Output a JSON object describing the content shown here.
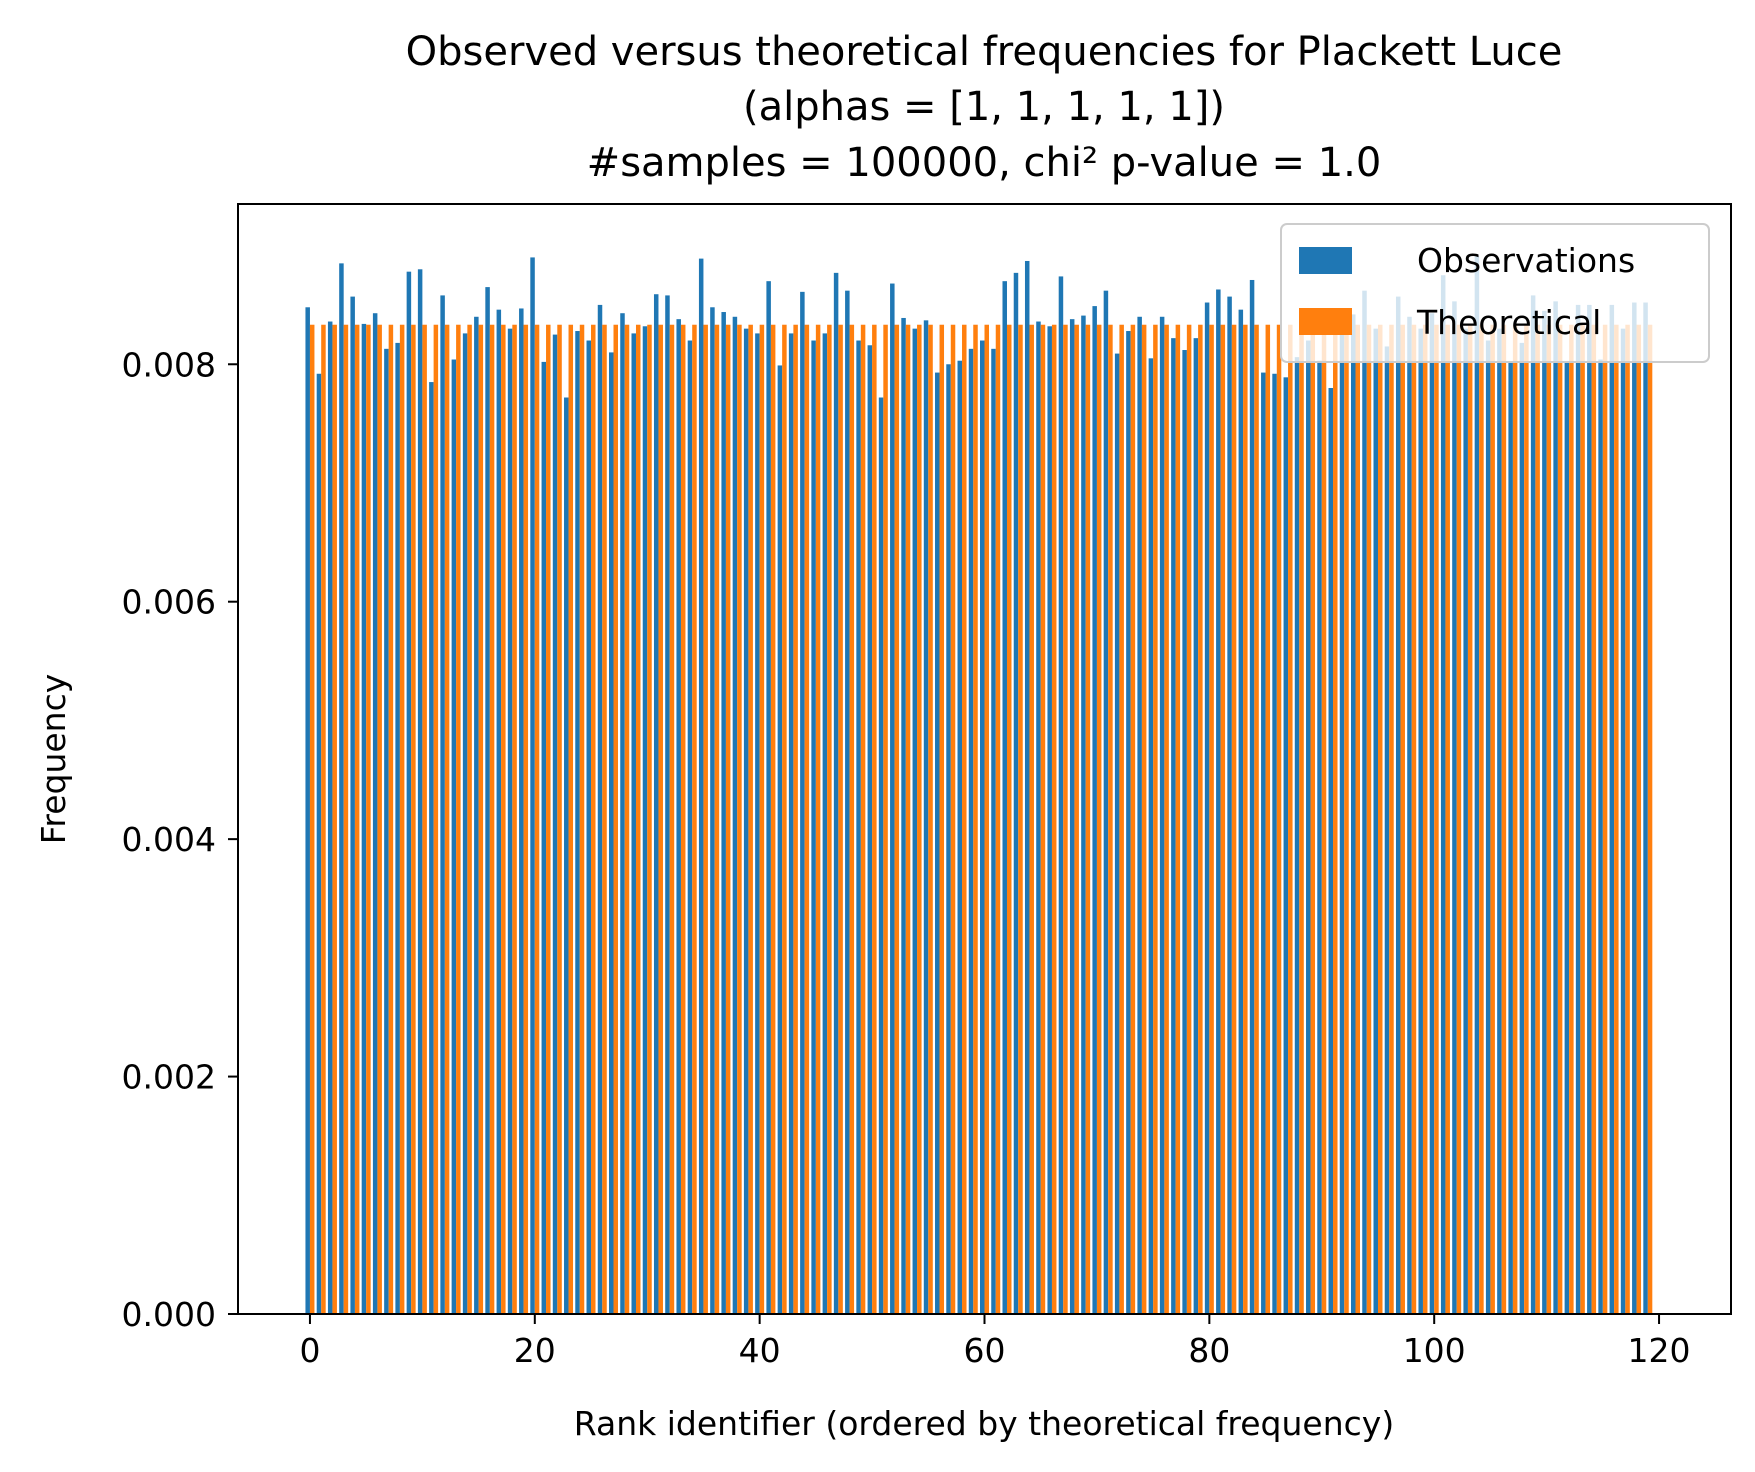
{
  "chart_data": {
    "type": "bar",
    "title": [
      "Observed versus theoretical frequencies for Plackett Luce",
      "(alphas = [1, 1, 1, 1, 1])",
      "#samples = 100000, chi² p-value = 1.0"
    ],
    "xlabel": "Rank identifier (ordered by theoretical frequency)",
    "ylabel": "Frequency",
    "xlim": [
      -6.4,
      126.4
    ],
    "ylim": [
      0,
      0.00935
    ],
    "xticks": [
      0,
      20,
      40,
      60,
      80,
      100,
      120
    ],
    "xtick_labels": [
      "0",
      "20",
      "40",
      "60",
      "80",
      "100",
      "120"
    ],
    "yticks": [
      0.0,
      0.002,
      0.004,
      0.006,
      0.008
    ],
    "ytick_labels": [
      "0.000",
      "0.002",
      "0.004",
      "0.006",
      "0.008"
    ],
    "x": [
      0,
      1,
      2,
      3,
      4,
      5,
      6,
      7,
      8,
      9,
      10,
      11,
      12,
      13,
      14,
      15,
      16,
      17,
      18,
      19,
      20,
      21,
      22,
      23,
      24,
      25,
      26,
      27,
      28,
      29,
      30,
      31,
      32,
      33,
      34,
      35,
      36,
      37,
      38,
      39,
      40,
      41,
      42,
      43,
      44,
      45,
      46,
      47,
      48,
      49,
      50,
      51,
      52,
      53,
      54,
      55,
      56,
      57,
      58,
      59,
      60,
      61,
      62,
      63,
      64,
      65,
      66,
      67,
      68,
      69,
      70,
      71,
      72,
      73,
      74,
      75,
      76,
      77,
      78,
      79,
      80,
      81,
      82,
      83,
      84,
      85,
      86,
      87,
      88,
      89,
      90,
      91,
      92,
      93,
      94,
      95,
      96,
      97,
      98,
      99,
      100,
      101,
      102,
      103,
      104,
      105,
      106,
      107,
      108,
      109,
      110,
      111,
      112,
      113,
      114,
      115,
      116,
      117,
      118,
      119
    ],
    "grid": false,
    "legend_position": "top-right",
    "series": [
      {
        "name": "Observations",
        "color": "#1f77b4",
        "values": [
          0.00848,
          0.00792,
          0.00836,
          0.00885,
          0.00857,
          0.00834,
          0.00843,
          0.00813,
          0.00818,
          0.00878,
          0.0088,
          0.00785,
          0.00858,
          0.00804,
          0.00826,
          0.0084,
          0.00865,
          0.00846,
          0.0083,
          0.00847,
          0.0089,
          0.00802,
          0.00825,
          0.00772,
          0.00828,
          0.0082,
          0.0085,
          0.0081,
          0.00843,
          0.00826,
          0.00832,
          0.00859,
          0.00858,
          0.00838,
          0.0082,
          0.00889,
          0.00848,
          0.00844,
          0.0084,
          0.0083,
          0.00826,
          0.0087,
          0.00799,
          0.00826,
          0.00861,
          0.0082,
          0.00826,
          0.00877,
          0.00862,
          0.0082,
          0.00816,
          0.00772,
          0.00868,
          0.00839,
          0.0083,
          0.00837,
          0.00793,
          0.008,
          0.00803,
          0.00813,
          0.0082,
          0.00813,
          0.0087,
          0.00877,
          0.00887,
          0.00836,
          0.00832,
          0.00874,
          0.00838,
          0.00841,
          0.00849,
          0.00862,
          0.00809,
          0.00828,
          0.0084,
          0.00805,
          0.0084,
          0.00822,
          0.00812,
          0.00822,
          0.00852,
          0.00863,
          0.00857,
          0.00846,
          0.00871,
          0.00793,
          0.00792,
          0.00789,
          0.00806,
          0.0082,
          0.00803,
          0.0078,
          0.00826,
          0.00842,
          0.00862,
          0.0083,
          0.00815,
          0.00857,
          0.0084,
          0.0083,
          0.00843,
          0.00875,
          0.00853,
          0.0083,
          0.00891,
          0.0082,
          0.0083,
          0.00802,
          0.00818,
          0.00858,
          0.00845,
          0.00853,
          0.00802,
          0.0085,
          0.0085,
          0.00804,
          0.0085,
          0.0083,
          0.00852,
          0.00852
        ]
      },
      {
        "name": "Theoretical",
        "color": "#ff7f0e",
        "values": [
          0.008333,
          0.008333,
          0.008333,
          0.008333,
          0.008333,
          0.008333,
          0.008333,
          0.008333,
          0.008333,
          0.008333,
          0.008333,
          0.008333,
          0.008333,
          0.008333,
          0.008333,
          0.008333,
          0.008333,
          0.008333,
          0.008333,
          0.008333,
          0.008333,
          0.008333,
          0.008333,
          0.008333,
          0.008333,
          0.008333,
          0.008333,
          0.008333,
          0.008333,
          0.008333,
          0.008333,
          0.008333,
          0.008333,
          0.008333,
          0.008333,
          0.008333,
          0.008333,
          0.008333,
          0.008333,
          0.008333,
          0.008333,
          0.008333,
          0.008333,
          0.008333,
          0.008333,
          0.008333,
          0.008333,
          0.008333,
          0.008333,
          0.008333,
          0.008333,
          0.008333,
          0.008333,
          0.008333,
          0.008333,
          0.008333,
          0.008333,
          0.008333,
          0.008333,
          0.008333,
          0.008333,
          0.008333,
          0.008333,
          0.008333,
          0.008333,
          0.008333,
          0.008333,
          0.008333,
          0.008333,
          0.008333,
          0.008333,
          0.008333,
          0.008333,
          0.008333,
          0.008333,
          0.008333,
          0.008333,
          0.008333,
          0.008333,
          0.008333,
          0.008333,
          0.008333,
          0.008333,
          0.008333,
          0.008333,
          0.008333,
          0.008333,
          0.008333,
          0.008333,
          0.008333,
          0.008333,
          0.008333,
          0.008333,
          0.008333,
          0.008333,
          0.008333,
          0.008333,
          0.008333,
          0.008333,
          0.008333,
          0.008333,
          0.008333,
          0.008333,
          0.008333,
          0.008333,
          0.008333,
          0.008333,
          0.008333,
          0.008333,
          0.008333,
          0.008333,
          0.008333,
          0.008333,
          0.008333,
          0.008333,
          0.008333,
          0.008333,
          0.008333,
          0.008333,
          0.008333
        ]
      }
    ]
  }
}
